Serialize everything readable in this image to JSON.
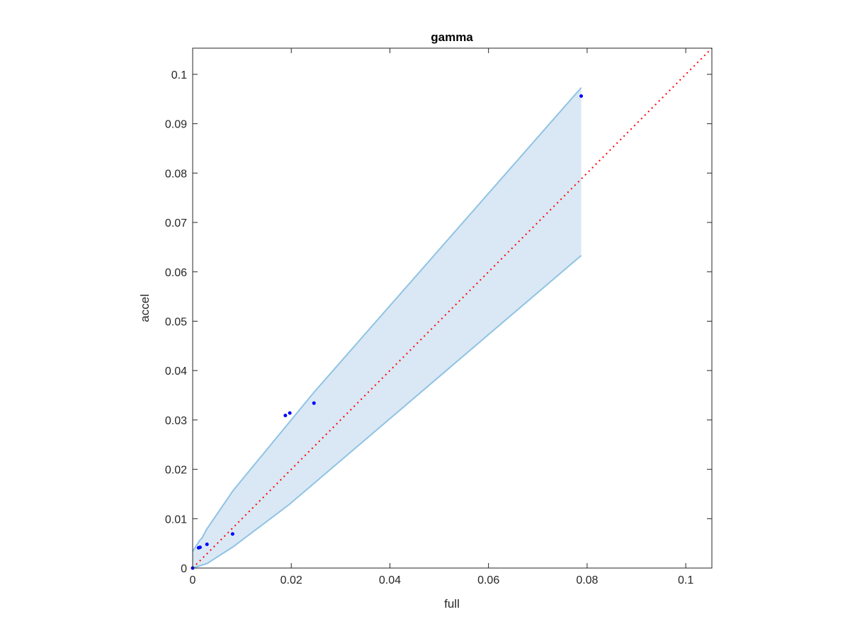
{
  "chart_data": {
    "type": "scatter",
    "title": "gamma",
    "xlabel": "full",
    "ylabel": "accel",
    "xlim": [
      0,
      0.1053
    ],
    "ylim": [
      0,
      0.1053
    ],
    "xticks": [
      "0",
      "0.02",
      "0.04",
      "0.06",
      "0.08",
      "0.1"
    ],
    "xtick_values": [
      0,
      0.02,
      0.04,
      0.06,
      0.08,
      0.1
    ],
    "yticks": [
      "0",
      "0.01",
      "0.02",
      "0.03",
      "0.04",
      "0.05",
      "0.06",
      "0.07",
      "0.08",
      "0.09",
      "0.1"
    ],
    "ytick_values": [
      0,
      0.01,
      0.02,
      0.03,
      0.04,
      0.05,
      0.06,
      0.07,
      0.08,
      0.09,
      0.1
    ],
    "grid": false,
    "points": [
      [
        0,
        0
      ],
      [
        0.0012,
        0.0041
      ],
      [
        0.0015,
        0.0042
      ],
      [
        0.0029,
        0.0048
      ],
      [
        0.0081,
        0.0069
      ],
      [
        0.0188,
        0.0309
      ],
      [
        0.0197,
        0.0314
      ],
      [
        0.0246,
        0.0334
      ],
      [
        0.0788,
        0.0956
      ]
    ],
    "band_upper": [
      [
        0,
        0.0034
      ],
      [
        0.0015,
        0.0057
      ],
      [
        0.0019,
        0.0061
      ],
      [
        0.0028,
        0.0078
      ],
      [
        0.0082,
        0.0157
      ],
      [
        0.0246,
        0.0356
      ],
      [
        0.0788,
        0.0973
      ]
    ],
    "band_lower": [
      [
        0,
        0
      ],
      [
        0.0029,
        0.0009
      ],
      [
        0.0082,
        0.0043
      ],
      [
        0.0195,
        0.0128
      ],
      [
        0.0788,
        0.0633
      ]
    ],
    "reference_line": "y = x",
    "colors": {
      "points": "#0000ff",
      "band_fill": "#d9e8f4",
      "band_edge": "#8fc3e3",
      "reference": "#ff0000",
      "axes": "#262626"
    }
  }
}
